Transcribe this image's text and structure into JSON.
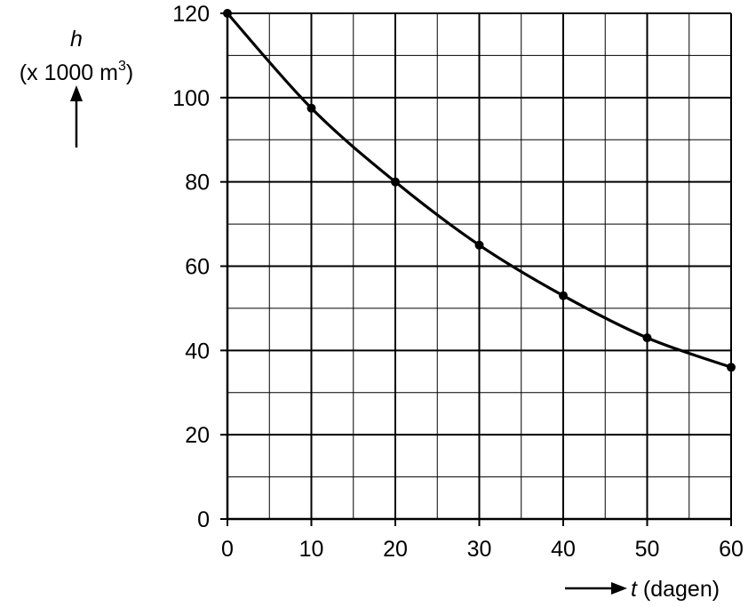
{
  "chart_data": {
    "type": "line",
    "x": [
      0,
      10,
      20,
      30,
      40,
      50,
      60
    ],
    "series": [
      {
        "values": [
          120,
          97.5,
          80,
          65,
          53,
          43,
          36
        ]
      }
    ],
    "ylabel_symbol": "h",
    "ylabel_unit_prefix": "(x 1000 m",
    "ylabel_unit_exponent": "3",
    "ylabel_unit_suffix": ")",
    "xlabel_symbol": "t",
    "xlabel_unit": " (dagen)",
    "xlim": [
      0,
      60
    ],
    "ylim": [
      0,
      120
    ],
    "x_ticks": [
      "0",
      "10",
      "20",
      "30",
      "40",
      "50",
      "60"
    ],
    "y_ticks": [
      "0",
      "20",
      "40",
      "60",
      "80",
      "100",
      "120"
    ],
    "x_minor_step": 5,
    "y_minor_step": 10,
    "grid": true,
    "line_color": "#000000",
    "grid_color": "#000000"
  }
}
